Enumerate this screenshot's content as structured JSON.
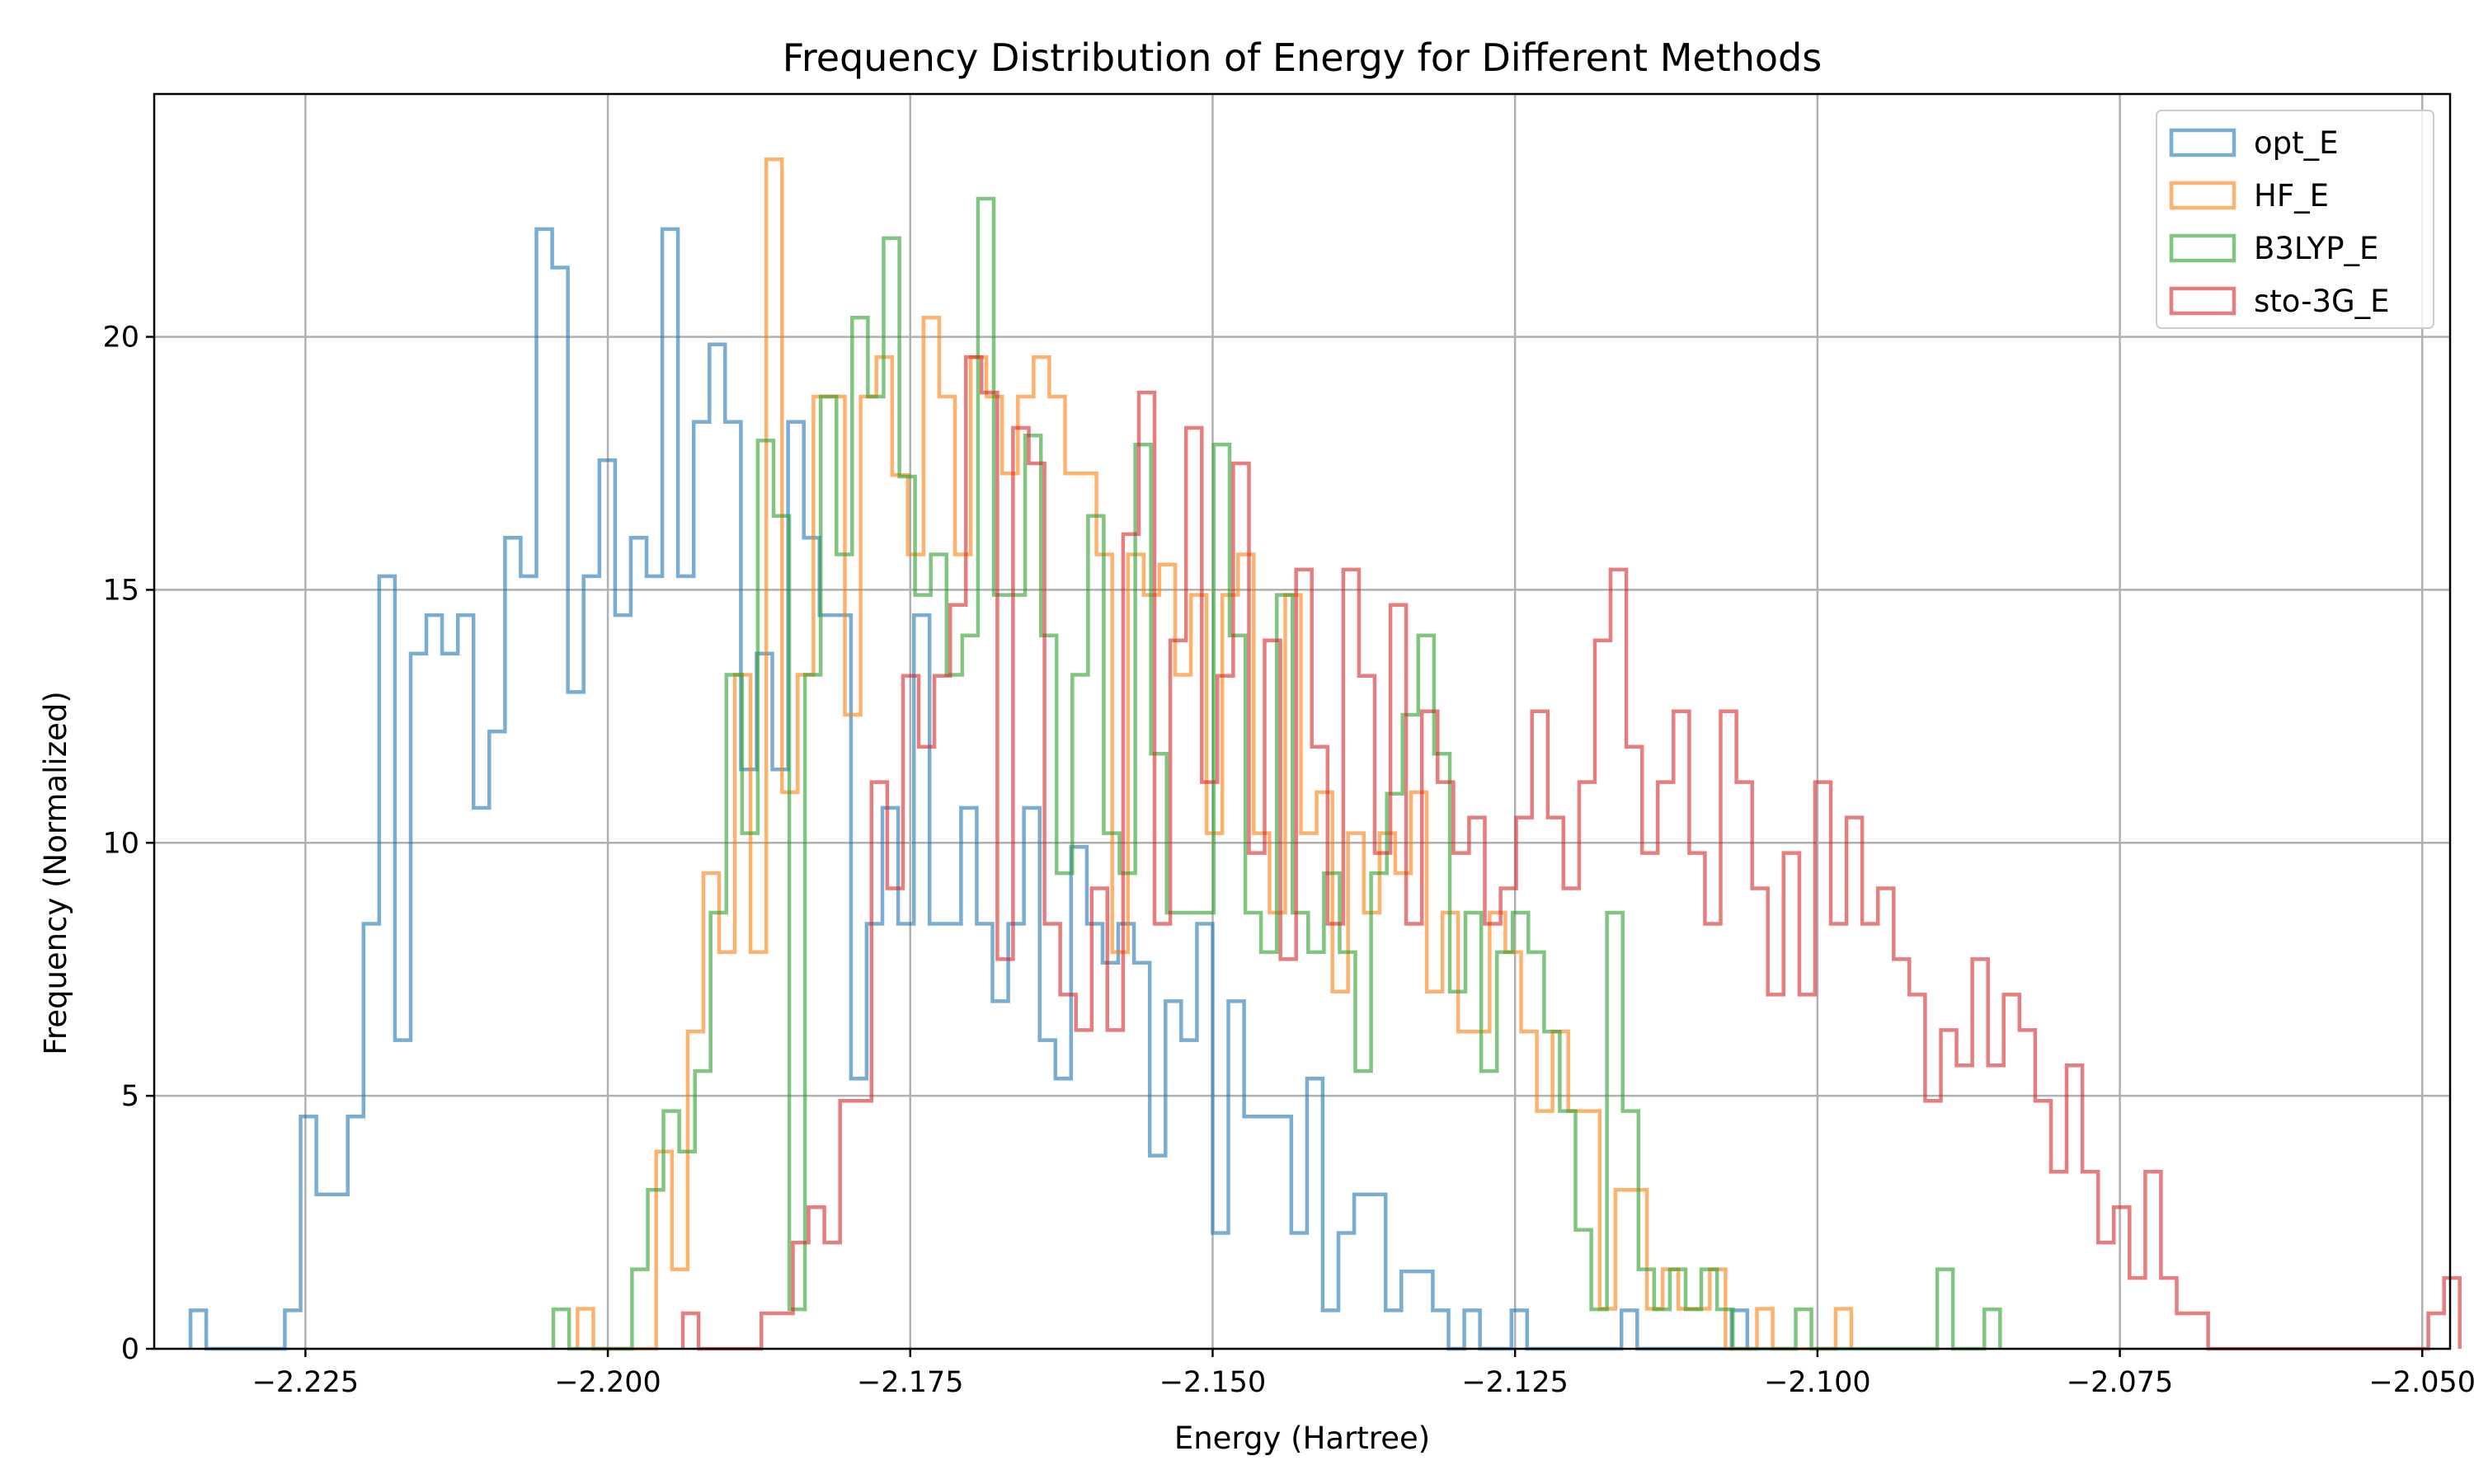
{
  "chart_data": {
    "type": "histogram",
    "title": "Frequency Distribution of Energy for Different Methods",
    "xlabel": "Energy (Hartree)",
    "ylabel": "Frequency (Normalized)",
    "xlim": [
      -2.2375,
      -2.0477
    ],
    "ylim": [
      0,
      24.8
    ],
    "x_ticks": [
      -2.225,
      -2.2,
      -2.175,
      -2.15,
      -2.125,
      -2.1,
      -2.075,
      -2.05
    ],
    "x_tick_labels": [
      "−2.225",
      "−2.200",
      "−2.175",
      "−2.150",
      "−2.125",
      "−2.100",
      "−2.075",
      "−2.050"
    ],
    "y_ticks": [
      0,
      5,
      10,
      15,
      20
    ],
    "y_tick_labels": [
      "0",
      "5",
      "10",
      "15",
      "20"
    ],
    "grid": true,
    "legend_position": "top-right",
    "histtype": "step",
    "series": [
      {
        "name": "opt_E",
        "color": "#1f77b4",
        "bin_start": -2.2345,
        "bin_width": 0.0013,
        "values": [
          0.76,
          0,
          0,
          0,
          0,
          0,
          0.76,
          4.59,
          3.05,
          3.05,
          4.59,
          8.4,
          15.27,
          6.1,
          13.74,
          14.5,
          13.74,
          14.5,
          10.69,
          12.2,
          16.03,
          15.27,
          22.13,
          21.37,
          12.98,
          15.27,
          17.56,
          14.5,
          16.03,
          15.27,
          22.13,
          15.27,
          18.32,
          19.85,
          18.32,
          11.45,
          13.74,
          11.45,
          18.32,
          16.03,
          14.5,
          14.5,
          5.34,
          8.4,
          10.69,
          8.4,
          14.5,
          8.4,
          8.4,
          10.69,
          8.4,
          6.87,
          8.4,
          10.69,
          6.1,
          5.34,
          9.92,
          8.4,
          7.63,
          8.4,
          7.63,
          3.82,
          6.87,
          6.1,
          8.4,
          2.29,
          6.87,
          4.59,
          4.59,
          4.59,
          2.29,
          5.34,
          0.76,
          2.29,
          3.05,
          3.05,
          0.76,
          1.53,
          1.53,
          0.76,
          0,
          0.76,
          0,
          0,
          0.76,
          0,
          0,
          0,
          0,
          0,
          0,
          0.76,
          0,
          0,
          0,
          0,
          0,
          0,
          0.76
        ]
      },
      {
        "name": "HF_E",
        "color": "#ff7f0e",
        "bin_start": -2.2025,
        "bin_width": 0.0013,
        "values": [
          0.79,
          0,
          0,
          0,
          0,
          3.9,
          1.57,
          6.27,
          9.4,
          7.84,
          13.32,
          7.84,
          23.51,
          11.0,
          13.32,
          18.82,
          18.82,
          12.53,
          18.82,
          19.6,
          17.27,
          15.7,
          20.38,
          18.82,
          15.7,
          19.6,
          18.82,
          17.3,
          18.82,
          19.6,
          18.82,
          17.3,
          17.3,
          15.7,
          7.84,
          15.7,
          14.9,
          15.5,
          13.32,
          14.9,
          10.19,
          14.9,
          15.7,
          10.19,
          8.62,
          14.9,
          10.19,
          11.0,
          7.06,
          10.19,
          8.62,
          10.19,
          9.4,
          11.0,
          7.06,
          8.62,
          6.27,
          6.27,
          8.62,
          7.84,
          6.27,
          4.7,
          6.27,
          4.7,
          4.7,
          0.79,
          3.14,
          3.14,
          0.79,
          1.57,
          0.79,
          0.79,
          1.57,
          0,
          0,
          0.79,
          0,
          0,
          0,
          0,
          0.79
        ]
      },
      {
        "name": "B3LYP_E",
        "color": "#2ca02c",
        "bin_start": -2.2045,
        "bin_width": 0.0013,
        "values": [
          0.78,
          0,
          0,
          0,
          0,
          1.57,
          3.14,
          4.7,
          3.9,
          5.49,
          8.62,
          13.32,
          10.19,
          17.95,
          16.46,
          0.78,
          13.32,
          18.82,
          15.7,
          20.38,
          18.82,
          21.95,
          17.24,
          14.9,
          15.7,
          13.32,
          14.1,
          22.73,
          14.9,
          14.9,
          18.05,
          14.1,
          9.4,
          13.32,
          16.46,
          10.19,
          9.4,
          17.87,
          11.76,
          8.62,
          8.62,
          8.62,
          17.87,
          14.1,
          8.62,
          7.84,
          14.9,
          8.62,
          7.84,
          9.4,
          7.84,
          5.49,
          9.4,
          10.97,
          12.53,
          14.1,
          11.76,
          7.06,
          8.62,
          5.49,
          7.84,
          8.62,
          7.84,
          6.27,
          4.7,
          2.35,
          0.78,
          8.62,
          4.7,
          1.57,
          0.78,
          1.57,
          0.78,
          1.57,
          0.78,
          0,
          0,
          0,
          0,
          0.78,
          0,
          0,
          0,
          0,
          0,
          0,
          0,
          0,
          1.57,
          0,
          0,
          0.78
        ]
      },
      {
        "name": "sto-3G_E",
        "color": "#d62728",
        "bin_start": -2.1938,
        "bin_width": 0.0013,
        "values": [
          0.7,
          0,
          0,
          0,
          0,
          0.7,
          0.7,
          2.1,
          2.8,
          2.1,
          4.9,
          4.9,
          11.2,
          9.1,
          13.3,
          11.9,
          13.3,
          14.7,
          19.6,
          18.9,
          7.7,
          18.2,
          17.5,
          8.4,
          7.0,
          6.3,
          9.1,
          6.3,
          16.1,
          18.9,
          8.4,
          14.0,
          18.2,
          11.2,
          13.3,
          17.5,
          9.8,
          14.0,
          7.7,
          15.4,
          11.9,
          8.4,
          15.4,
          13.3,
          9.8,
          14.7,
          8.4,
          12.6,
          11.2,
          9.8,
          10.5,
          8.4,
          9.1,
          10.5,
          12.6,
          10.5,
          9.1,
          11.2,
          14.0,
          15.4,
          11.9,
          9.8,
          11.2,
          12.6,
          9.8,
          8.4,
          12.6,
          11.2,
          9.1,
          7.0,
          9.8,
          7.0,
          11.2,
          8.4,
          10.5,
          8.4,
          9.1,
          7.7,
          7.0,
          4.9,
          6.3,
          5.6,
          7.7,
          5.6,
          7.0,
          6.3,
          4.9,
          3.5,
          5.6,
          3.5,
          2.1,
          2.8,
          1.4,
          3.5,
          1.4,
          0.7,
          0.7,
          0,
          0,
          0,
          0,
          0,
          0,
          0,
          0,
          0,
          0,
          0,
          0,
          0,
          0,
          0.7,
          1.4
        ]
      }
    ]
  }
}
